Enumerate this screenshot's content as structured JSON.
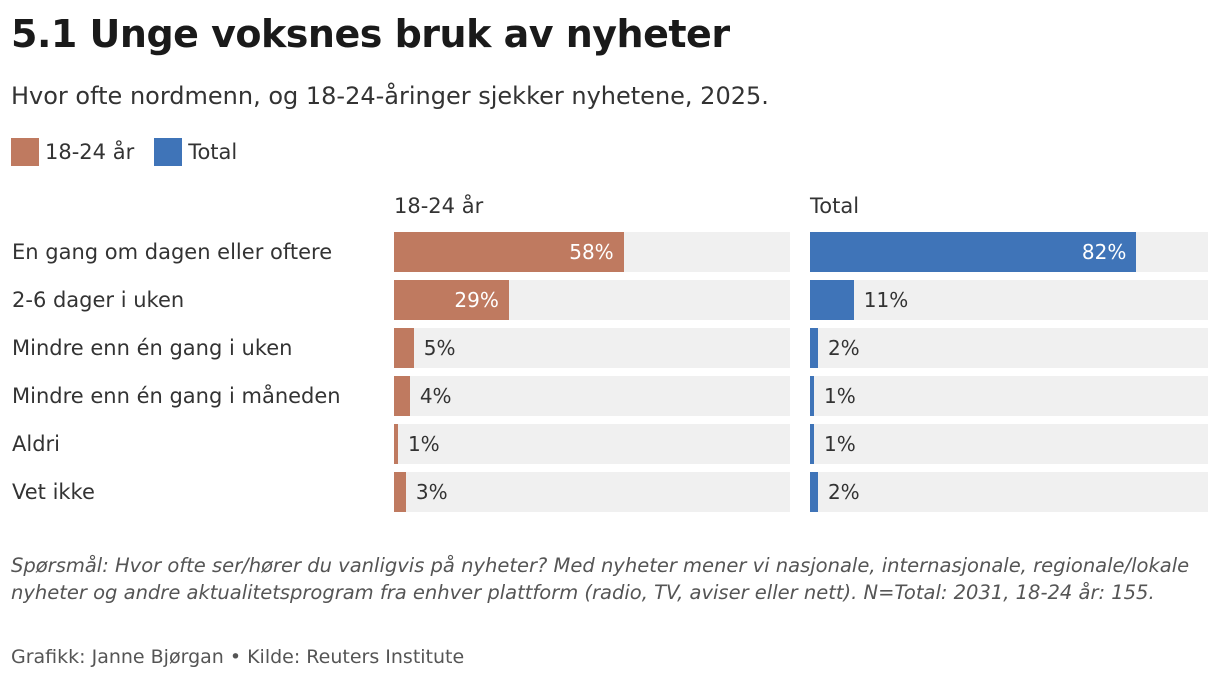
{
  "header": {
    "title": "5.1 Unge voksnes bruk av nyheter",
    "subtitle": "Hvor ofte nordmenn, og 18-24-åringer sjekker nyhetene, 2025."
  },
  "legend": [
    {
      "label": "18-24 år",
      "color": "#bf7a60"
    },
    {
      "label": "Total",
      "color": "#3f74b8"
    }
  ],
  "chart_data": {
    "type": "bar",
    "orientation": "horizontal",
    "layout": "small-multiples",
    "categories": [
      "En gang om dagen eller oftere",
      "2-6 dager i uken",
      "Mindre enn én gang i uken",
      "Mindre enn én gang i måneden",
      "Aldri",
      "Vet ikke"
    ],
    "series": [
      {
        "name": "18-24 år",
        "color": "#bf7a60",
        "values": [
          58,
          29,
          5,
          4,
          1,
          3
        ],
        "labels": [
          "58%",
          "29%",
          "5%",
          "4%",
          "1%",
          "3%"
        ]
      },
      {
        "name": "Total",
        "color": "#3f74b8",
        "values": [
          82,
          11,
          2,
          1,
          1,
          2
        ],
        "labels": [
          "82%",
          "11%",
          "2%",
          "1%",
          "1%",
          "2%"
        ]
      }
    ],
    "xlim": [
      0,
      100
    ],
    "unit": "%",
    "grid": false
  },
  "footer": {
    "note": "Spørsmål: Hvor ofte ser/hører du vanligvis på nyheter? Med nyheter mener vi nasjonale, internasjonale, regionale/lokale nyheter og andre aktualitetsprogram fra enhver plattform (radio, TV, aviser eller nett). N=Total: 2031, 18-24 år: 155.",
    "credit": "Grafikk: Janne Bjørgan • Kilde: Reuters Institute"
  }
}
